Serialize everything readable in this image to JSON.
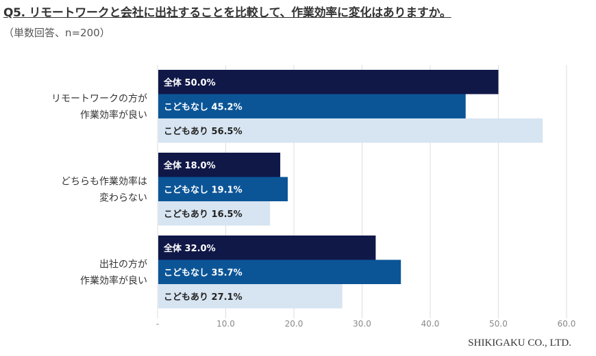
{
  "title": "Q5. リモートワークと会社に出社することを比較して、作業効率に変化はありますか。",
  "subtitle": "（単数回答、n=200）",
  "credit": "SHIKIGAKU CO., LTD.",
  "chart_data": {
    "type": "bar",
    "orientation": "horizontal",
    "categories": [
      [
        "リモートワークの方が",
        "作業効率が良い"
      ],
      [
        "どちらも作業効率は",
        "変わらない"
      ],
      [
        "出社の方が",
        "作業効率が良い"
      ]
    ],
    "series": [
      {
        "name": "全体",
        "values": [
          50.0,
          18.0,
          32.0
        ],
        "color": "#101848"
      },
      {
        "name": "こどもなし",
        "values": [
          45.2,
          19.1,
          35.7
        ],
        "color": "#0b5597"
      },
      {
        "name": "こどもあり",
        "values": [
          56.5,
          16.5,
          27.1
        ],
        "color": "#d7e4f1"
      }
    ],
    "xlim": [
      0,
      60
    ],
    "xticks": [
      "-",
      "10.0",
      "20.0",
      "30.0",
      "40.0",
      "50.0",
      "60.0"
    ],
    "grid": true,
    "legend": "none"
  }
}
